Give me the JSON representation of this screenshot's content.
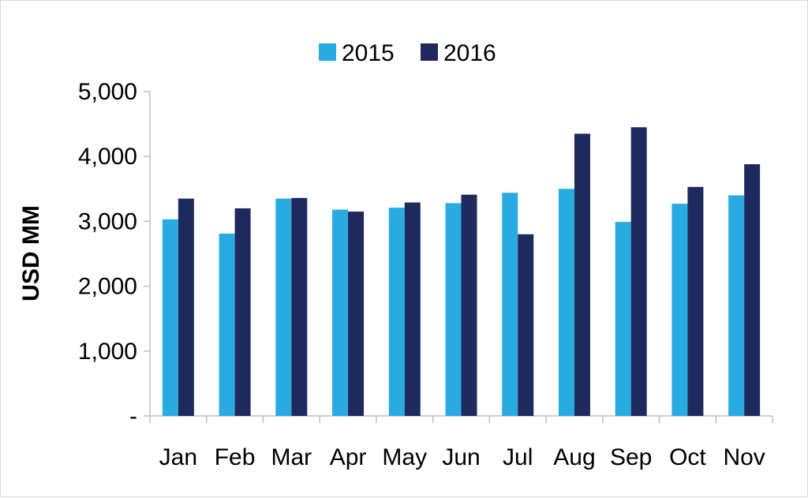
{
  "chart_data": {
    "type": "bar",
    "title": "",
    "xlabel": "",
    "ylabel": "USD MM",
    "categories": [
      "Jan",
      "Feb",
      "Mar",
      "Apr",
      "May",
      "Jun",
      "Jul",
      "Aug",
      "Sep",
      "Oct",
      "Nov"
    ],
    "series": [
      {
        "name": "2015",
        "color": "#29abe2",
        "values": [
          3030,
          2810,
          3350,
          3180,
          3210,
          3280,
          3440,
          3500,
          2990,
          3270,
          3400
        ]
      },
      {
        "name": "2016",
        "color": "#1e2a5e",
        "values": [
          3350,
          3200,
          3360,
          3150,
          3290,
          3410,
          2800,
          4350,
          4450,
          3530,
          3880
        ]
      }
    ],
    "ylim": [
      0,
      5000
    ],
    "yticks": [
      0,
      1000,
      2000,
      3000,
      4000,
      5000
    ],
    "ytick_labels": [
      "-",
      "1,000",
      "2,000",
      "3,000",
      "4,000",
      "5,000"
    ],
    "grid": false,
    "legend_position": "top-center"
  }
}
